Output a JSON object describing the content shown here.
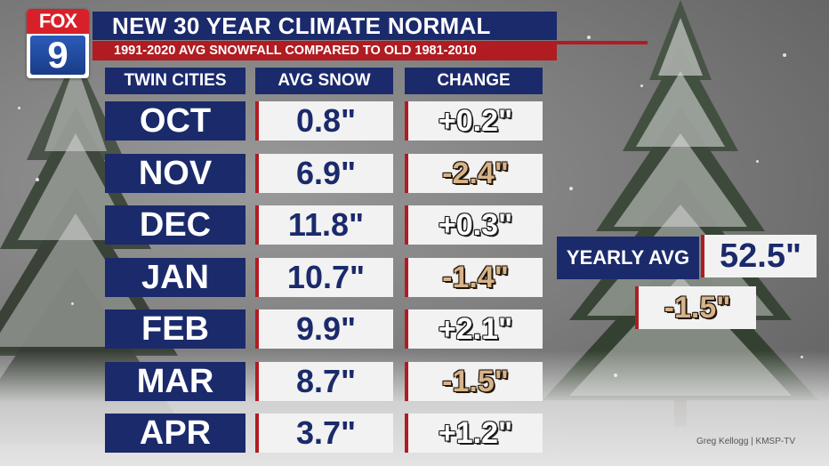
{
  "logo": {
    "top": "FOX",
    "bottom": "9"
  },
  "title": "NEW 30 YEAR CLIMATE NORMAL",
  "subtitle": "1991-2020 AVG SNOWFALL COMPARED TO OLD 1981-2010",
  "columns": {
    "location": "TWIN CITIES",
    "avg": "AVG SNOW",
    "change": "CHANGE"
  },
  "rows": [
    {
      "month": "OCT",
      "avg": "0.8\"",
      "change": "+0.2\"",
      "trend": "up"
    },
    {
      "month": "NOV",
      "avg": "6.9\"",
      "change": "-2.4\"",
      "trend": "down"
    },
    {
      "month": "DEC",
      "avg": "11.8\"",
      "change": "+0.3\"",
      "trend": "up"
    },
    {
      "month": "JAN",
      "avg": "10.7\"",
      "change": "-1.4\"",
      "trend": "down"
    },
    {
      "month": "FEB",
      "avg": "9.9\"",
      "change": "+2.1\"",
      "trend": "up"
    },
    {
      "month": "MAR",
      "avg": "8.7\"",
      "change": "-1.5\"",
      "trend": "down"
    },
    {
      "month": "APR",
      "avg": "3.7\"",
      "change": "+1.2\"",
      "trend": "up"
    }
  ],
  "yearly": {
    "label": "YEARLY AVG",
    "value": "52.5\"",
    "change": "-1.5\""
  },
  "credit": "Greg Kellogg | KMSP-TV",
  "colors": {
    "navy": "#1b2a6b",
    "red": "#b01c22",
    "positive": "#ffffff",
    "negative": "#d7b38a"
  }
}
